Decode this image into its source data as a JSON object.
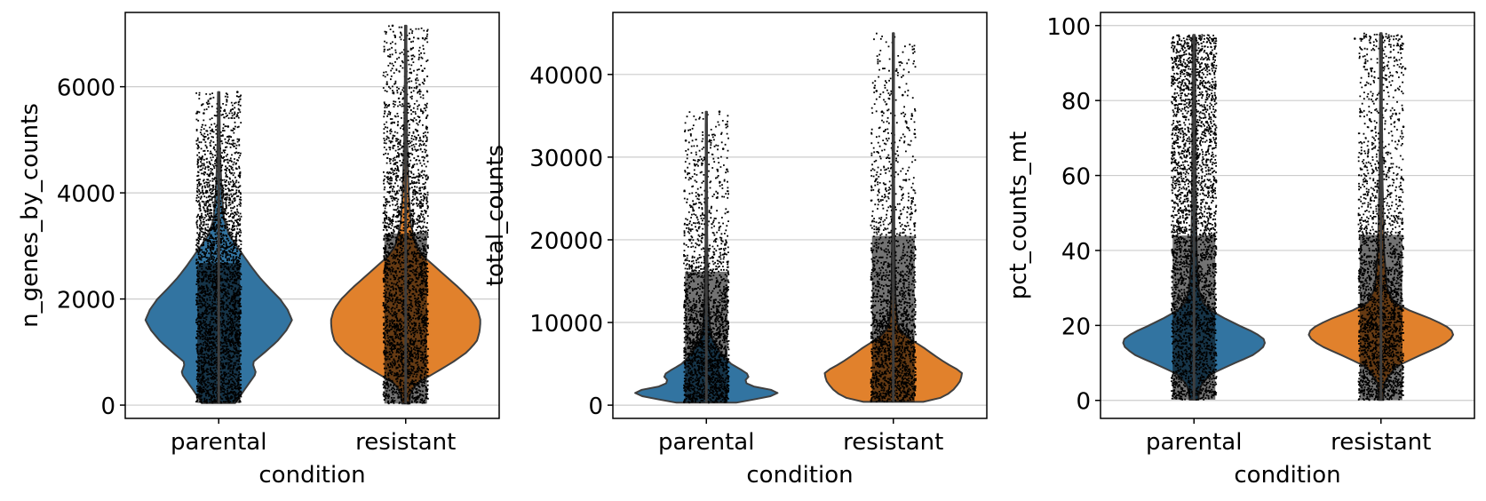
{
  "chart_data": [
    {
      "type": "violin",
      "xlabel": "condition",
      "ylabel": "n_genes_by_counts",
      "categories": [
        "parental",
        "resistant"
      ],
      "colors": [
        "#3274a1",
        "#e1812c"
      ],
      "ylim": [
        -250,
        7400
      ],
      "yticks": [
        0,
        2000,
        4000,
        6000
      ],
      "grid": true,
      "violins": [
        {
          "category": "parental",
          "min": 40,
          "max": 5900,
          "profile": [
            [
              50,
              0.22
            ],
            [
              200,
              0.3
            ],
            [
              400,
              0.4
            ],
            [
              600,
              0.5
            ],
            [
              800,
              0.45
            ],
            [
              1000,
              0.62
            ],
            [
              1200,
              0.78
            ],
            [
              1400,
              0.9
            ],
            [
              1600,
              0.98
            ],
            [
              1800,
              0.92
            ],
            [
              2000,
              0.82
            ],
            [
              2200,
              0.68
            ],
            [
              2400,
              0.55
            ],
            [
              2600,
              0.44
            ],
            [
              2800,
              0.34
            ],
            [
              3000,
              0.24
            ],
            [
              3200,
              0.14
            ],
            [
              3500,
              0.07
            ],
            [
              4000,
              0.04
            ],
            [
              4500,
              0.025
            ],
            [
              5000,
              0.015
            ],
            [
              5900,
              0.01
            ]
          ],
          "scatter_density": [
            [
              50,
              0.1
            ],
            [
              1000,
              0.1
            ],
            [
              2000,
              0.1
            ],
            [
              3000,
              0.095
            ],
            [
              4000,
              0.07
            ],
            [
              5000,
              0.04
            ],
            [
              5900,
              0.02
            ]
          ],
          "outliers": [
            [
              0.1,
              5900
            ],
            [
              -0.08,
              5500
            ],
            [
              0.05,
              5250
            ]
          ]
        },
        {
          "category": "resistant",
          "min": 30,
          "max": 7150,
          "profile": [
            [
              30,
              0.05
            ],
            [
              200,
              0.06
            ],
            [
              400,
              0.14
            ],
            [
              600,
              0.38
            ],
            [
              800,
              0.62
            ],
            [
              1000,
              0.82
            ],
            [
              1200,
              0.95
            ],
            [
              1400,
              0.99
            ],
            [
              1600,
              1.0
            ],
            [
              1800,
              0.96
            ],
            [
              2000,
              0.86
            ],
            [
              2200,
              0.72
            ],
            [
              2400,
              0.56
            ],
            [
              2600,
              0.4
            ],
            [
              2800,
              0.24
            ],
            [
              3000,
              0.14
            ],
            [
              3400,
              0.07
            ],
            [
              4000,
              0.04
            ],
            [
              5000,
              0.02
            ],
            [
              6000,
              0.012
            ],
            [
              7150,
              0.01
            ]
          ],
          "scatter_density": [
            [
              30,
              0.1
            ],
            [
              1000,
              0.1
            ],
            [
              2000,
              0.1
            ],
            [
              3000,
              0.1
            ],
            [
              4000,
              0.08
            ],
            [
              5000,
              0.05
            ],
            [
              6000,
              0.03
            ],
            [
              7150,
              0.02
            ]
          ],
          "outliers": [
            [
              -0.07,
              7150
            ],
            [
              0.02,
              6900
            ],
            [
              0.09,
              6300
            ],
            [
              -0.1,
              6050
            ],
            [
              0.06,
              6000
            ]
          ]
        }
      ]
    },
    {
      "type": "violin",
      "xlabel": "condition",
      "ylabel": "total_counts",
      "categories": [
        "parental",
        "resistant"
      ],
      "colors": [
        "#3274a1",
        "#e1812c"
      ],
      "ylim": [
        -1600,
        47500
      ],
      "yticks": [
        0,
        10000,
        20000,
        30000,
        40000
      ],
      "grid": true,
      "violins": [
        {
          "category": "parental",
          "min": 300,
          "max": 35500,
          "profile": [
            [
              300,
              0.4
            ],
            [
              800,
              0.7
            ],
            [
              1300,
              0.98
            ],
            [
              1800,
              0.9
            ],
            [
              2400,
              0.55
            ],
            [
              3000,
              0.52
            ],
            [
              3600,
              0.58
            ],
            [
              4200,
              0.48
            ],
            [
              5000,
              0.33
            ],
            [
              6000,
              0.22
            ],
            [
              7000,
              0.14
            ],
            [
              8000,
              0.08
            ],
            [
              10000,
              0.04
            ],
            [
              14000,
              0.02
            ],
            [
              20000,
              0.012
            ],
            [
              35500,
              0.008
            ]
          ],
          "scatter_density": [
            [
              300,
              0.1
            ],
            [
              5000,
              0.1
            ],
            [
              10000,
              0.09
            ],
            [
              14000,
              0.05
            ],
            [
              20000,
              0.03
            ],
            [
              30000,
              0.015
            ],
            [
              35500,
              0.01
            ]
          ],
          "outliers": [
            [
              0.07,
              35500
            ],
            [
              -0.11,
              32000
            ],
            [
              0.09,
              31000
            ],
            [
              -0.06,
              29000
            ],
            [
              0.11,
              28500
            ]
          ]
        },
        {
          "category": "resistant",
          "min": 400,
          "max": 45000,
          "profile": [
            [
              400,
              0.4
            ],
            [
              1000,
              0.68
            ],
            [
              2000,
              0.82
            ],
            [
              3000,
              0.9
            ],
            [
              4000,
              0.92
            ],
            [
              5000,
              0.72
            ],
            [
              6000,
              0.55
            ],
            [
              7000,
              0.4
            ],
            [
              8000,
              0.22
            ],
            [
              9000,
              0.1
            ],
            [
              10000,
              0.05
            ],
            [
              14000,
              0.025
            ],
            [
              20000,
              0.015
            ],
            [
              30000,
              0.01
            ],
            [
              45000,
              0.008
            ]
          ],
          "scatter_density": [
            [
              400,
              0.1
            ],
            [
              5000,
              0.1
            ],
            [
              10000,
              0.09
            ],
            [
              14000,
              0.06
            ],
            [
              20000,
              0.035
            ],
            [
              30000,
              0.02
            ],
            [
              40000,
              0.01
            ],
            [
              45000,
              0.005
            ]
          ],
          "outliers": [
            [
              -0.09,
              38000
            ],
            [
              0.05,
              37500
            ],
            [
              -0.06,
              35500
            ],
            [
              0.1,
              35000
            ],
            [
              0.08,
              33500
            ]
          ]
        }
      ]
    },
    {
      "type": "violin",
      "xlabel": "condition",
      "ylabel": "pct_counts_mt",
      "categories": [
        "parental",
        "resistant"
      ],
      "colors": [
        "#3274a1",
        "#e1812c"
      ],
      "ylim": [
        -4.8,
        103.5
      ],
      "yticks": [
        0,
        20,
        40,
        60,
        80,
        100
      ],
      "grid": true,
      "violins": [
        {
          "category": "parental",
          "min": 0.2,
          "max": 97.5,
          "profile": [
            [
              1,
              0.06
            ],
            [
              4,
              0.09
            ],
            [
              7,
              0.22
            ],
            [
              10,
              0.55
            ],
            [
              12,
              0.78
            ],
            [
              14,
              0.92
            ],
            [
              16,
              0.96
            ],
            [
              18,
              0.82
            ],
            [
              20,
              0.6
            ],
            [
              22,
              0.4
            ],
            [
              24,
              0.22
            ],
            [
              26,
              0.12
            ],
            [
              30,
              0.06
            ],
            [
              40,
              0.035
            ],
            [
              60,
              0.025
            ],
            [
              80,
              0.02
            ],
            [
              92,
              0.02
            ],
            [
              96,
              0.03
            ],
            [
              97.5,
              0.01
            ]
          ],
          "scatter_density": [
            [
              0.2,
              0.1
            ],
            [
              20,
              0.1
            ],
            [
              40,
              0.09
            ],
            [
              60,
              0.08
            ],
            [
              80,
              0.08
            ],
            [
              90,
              0.09
            ],
            [
              97.5,
              0.1
            ]
          ],
          "outliers": []
        },
        {
          "category": "resistant",
          "min": 0.1,
          "max": 98,
          "profile": [
            [
              1,
              0.03
            ],
            [
              5,
              0.05
            ],
            [
              9,
              0.2
            ],
            [
              12,
              0.52
            ],
            [
              14,
              0.75
            ],
            [
              16,
              0.92
            ],
            [
              18,
              0.98
            ],
            [
              20,
              0.86
            ],
            [
              22,
              0.64
            ],
            [
              24,
              0.38
            ],
            [
              26,
              0.18
            ],
            [
              30,
              0.08
            ],
            [
              40,
              0.04
            ],
            [
              60,
              0.02
            ],
            [
              80,
              0.012
            ],
            [
              96,
              0.015
            ],
            [
              98,
              0.01
            ]
          ],
          "scatter_density": [
            [
              0.1,
              0.1
            ],
            [
              20,
              0.1
            ],
            [
              30,
              0.09
            ],
            [
              40,
              0.06
            ],
            [
              55,
              0.04
            ],
            [
              65,
              0.03
            ],
            [
              80,
              0.015
            ],
            [
              88,
              0.03
            ],
            [
              92,
              0.02
            ],
            [
              98,
              0.05
            ]
          ],
          "outliers": [
            [
              -0.14,
              96.5
            ],
            [
              0.11,
              97
            ],
            [
              -0.09,
              89
            ],
            [
              0.13,
              88.5
            ],
            [
              -0.11,
              77
            ],
            [
              0.08,
              76.5
            ],
            [
              -0.06,
              75
            ],
            [
              0.12,
              73
            ]
          ]
        }
      ]
    }
  ]
}
